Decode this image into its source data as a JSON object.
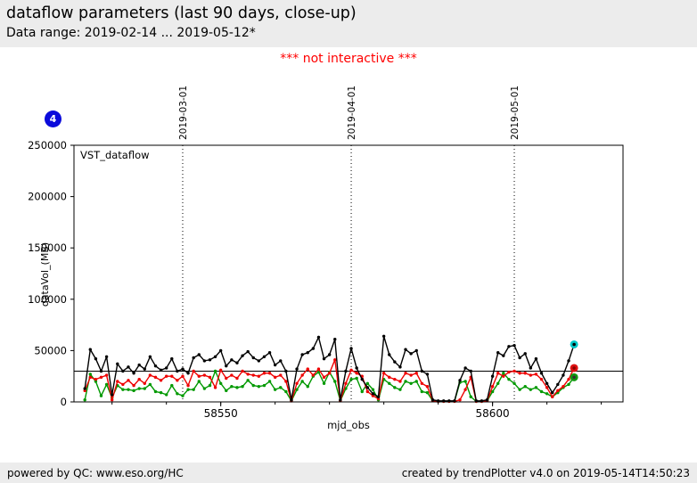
{
  "header": {
    "title": "dataflow parameters (last 90 days, close-up)",
    "subtitle": "Data range: 2019-02-14 ... 2019-05-12*"
  },
  "note": {
    "text": "*** not interactive ***",
    "color": "#ff0000"
  },
  "badge": {
    "label": "4",
    "color": "#0b0bdb"
  },
  "footer": {
    "left": "powered by QC: www.eso.org/HC",
    "right": "created by trendPlotter v4.0 on 2019-05-14T14:50:23"
  },
  "chart_data": {
    "type": "line",
    "inset_label": "VST_dataflow",
    "xlabel": "mjd_obs",
    "ylabel": "dataVol_(MB)",
    "xlim": [
      58523,
      58624
    ],
    "ylim": [
      0,
      250000
    ],
    "yticks": [
      0,
      50000,
      100000,
      150000,
      200000,
      250000
    ],
    "xticks_major": [
      58550,
      58600
    ],
    "xticks_minor": [
      58530,
      58540,
      58550,
      58560,
      58570,
      58580,
      58590,
      58600,
      58610,
      58620
    ],
    "hline": 30000,
    "grid": false,
    "month_lines": [
      {
        "mjd": 58543,
        "label": "2019-03-01"
      },
      {
        "mjd": 58574,
        "label": "2019-04-01"
      },
      {
        "mjd": 58604,
        "label": "2019-05-01"
      }
    ],
    "x": [
      58525,
      58526,
      58527,
      58528,
      58529,
      58530,
      58531,
      58532,
      58533,
      58534,
      58535,
      58536,
      58537,
      58538,
      58539,
      58540,
      58541,
      58542,
      58543,
      58544,
      58545,
      58546,
      58547,
      58548,
      58549,
      58550,
      58551,
      58552,
      58553,
      58554,
      58555,
      58556,
      58557,
      58558,
      58559,
      58560,
      58561,
      58562,
      58563,
      58564,
      58565,
      58566,
      58567,
      58568,
      58569,
      58570,
      58571,
      58572,
      58573,
      58574,
      58575,
      58576,
      58577,
      58578,
      58579,
      58580,
      58581,
      58582,
      58583,
      58584,
      58585,
      58586,
      58587,
      58588,
      58589,
      58590,
      58591,
      58592,
      58593,
      58594,
      58595,
      58596,
      58597,
      58598,
      58599,
      58600,
      58601,
      58602,
      58603,
      58604,
      58605,
      58606,
      58607,
      58608,
      58609,
      58610,
      58611,
      58612,
      58613,
      58614,
      58615
    ],
    "series": [
      {
        "name": "black",
        "color": "#000000",
        "values": [
          13000,
          51000,
          42000,
          30000,
          44000,
          7000,
          37000,
          30000,
          34000,
          28000,
          36000,
          32000,
          44000,
          35000,
          31000,
          33000,
          42000,
          30000,
          32000,
          28000,
          43000,
          46000,
          40000,
          41000,
          44000,
          50000,
          35000,
          41000,
          38000,
          45000,
          49000,
          43000,
          40000,
          44000,
          48000,
          36000,
          40000,
          30000,
          2000,
          32000,
          46000,
          48000,
          52000,
          63000,
          42000,
          46000,
          61000,
          2000,
          30000,
          52000,
          33000,
          22000,
          14000,
          8000,
          5000,
          64000,
          46000,
          39000,
          34000,
          51000,
          47000,
          50000,
          30000,
          27000,
          2000,
          1000,
          1000,
          1000,
          1000,
          21000,
          33000,
          30000,
          1000,
          1000,
          2000,
          25000,
          48000,
          45000,
          54000,
          55000,
          43000,
          47000,
          33000,
          42000,
          28000,
          18000,
          9000,
          17000,
          26000,
          40000,
          56000
        ]
      },
      {
        "name": "red",
        "color": "#ee0000",
        "values": [
          11000,
          24000,
          22000,
          24000,
          26000,
          2000,
          20000,
          17000,
          21000,
          16000,
          22000,
          18000,
          26000,
          24000,
          21000,
          25000,
          25000,
          21000,
          25000,
          16000,
          30000,
          25000,
          26000,
          24000,
          14000,
          31000,
          23000,
          26000,
          23000,
          30000,
          27000,
          26000,
          25000,
          28000,
          28000,
          24000,
          26000,
          20000,
          1000,
          18000,
          26000,
          32000,
          26000,
          32000,
          24000,
          28000,
          41000,
          1000,
          18000,
          31000,
          28000,
          25000,
          10000,
          6000,
          3000,
          28000,
          24000,
          22000,
          20000,
          28000,
          26000,
          28000,
          18000,
          15000,
          1000,
          500,
          500,
          500,
          500,
          2000,
          12000,
          24000,
          500,
          500,
          1000,
          15000,
          28000,
          25000,
          29000,
          30000,
          28000,
          28000,
          26000,
          27000,
          22000,
          14000,
          5000,
          11000,
          15000,
          22000,
          33000
        ]
      },
      {
        "name": "green",
        "color": "#009900",
        "values": [
          2000,
          27000,
          20000,
          6000,
          17000,
          4000,
          16000,
          12000,
          12000,
          11000,
          13000,
          13000,
          17000,
          10000,
          9000,
          7000,
          16000,
          8000,
          6000,
          12000,
          12000,
          20000,
          13000,
          16000,
          30000,
          18000,
          11000,
          15000,
          14000,
          15000,
          21000,
          16000,
          15000,
          16000,
          20000,
          12000,
          14000,
          10000,
          1000,
          12000,
          20000,
          15000,
          25000,
          29000,
          18000,
          29000,
          20000,
          1000,
          13000,
          22000,
          23000,
          10000,
          18000,
          12000,
          2000,
          22000,
          18000,
          14000,
          12000,
          20000,
          18000,
          20000,
          10000,
          9000,
          1000,
          500,
          500,
          500,
          500,
          19000,
          20000,
          5000,
          500,
          500,
          1000,
          10000,
          18000,
          28000,
          22000,
          18000,
          12000,
          15000,
          12000,
          14000,
          10000,
          8000,
          5000,
          9000,
          14000,
          17000,
          24000
        ]
      }
    ],
    "end_markers": [
      {
        "series": 0,
        "fill": "#00c8c8",
        "center": "#000000"
      },
      {
        "series": 1,
        "fill": "#dd1111",
        "center": "#8b0000"
      },
      {
        "series": 2,
        "fill": "#119911",
        "center": "#333333"
      }
    ]
  }
}
